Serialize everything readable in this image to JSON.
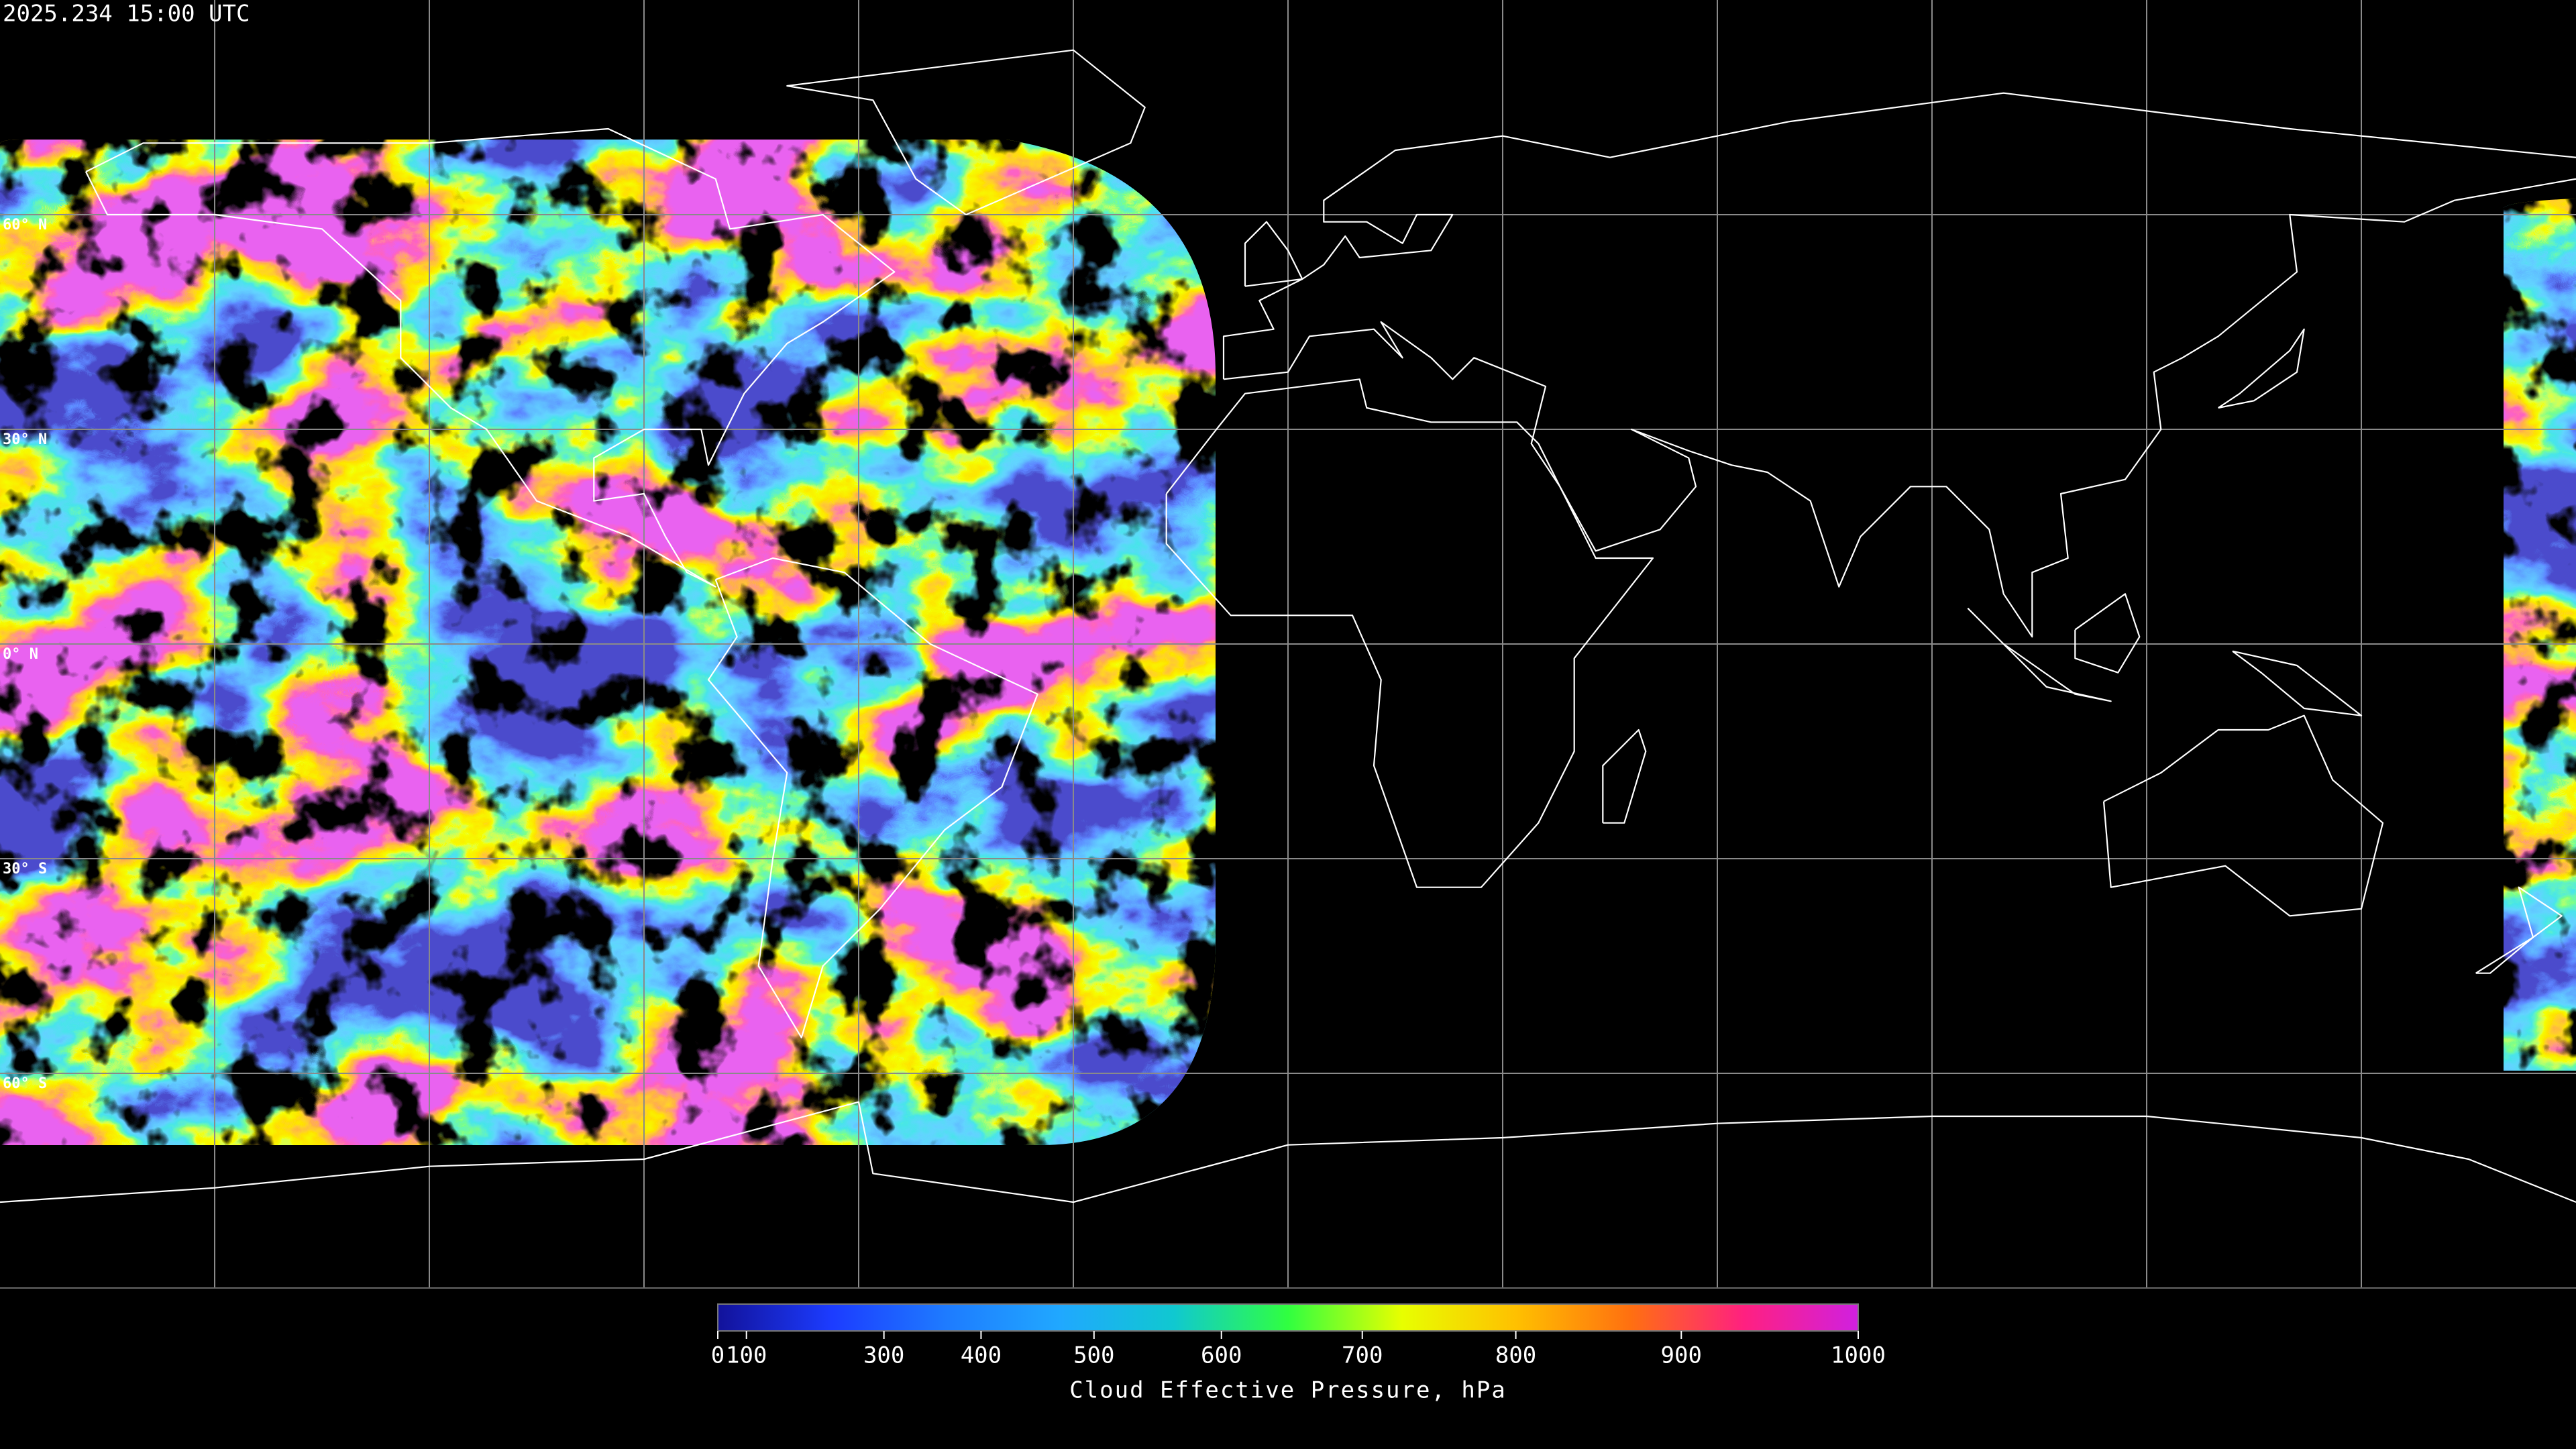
{
  "timestamp": "2025.234 15:00 UTC",
  "map": {
    "latitude_labels": [
      "60° N",
      "30° N",
      "0° N",
      "30° S",
      "60° S"
    ]
  },
  "colorbar": {
    "label": "Cloud Effective Pressure, hPa",
    "lim": [
      0,
      1000
    ],
    "ticks": [
      0,
      100,
      300,
      400,
      500,
      600,
      700,
      800,
      900,
      1000
    ],
    "colors": [
      "#12129a",
      "#1c3cff",
      "#1e7bff",
      "#20a8ff",
      "#10c8d0",
      "#30ff40",
      "#e8ff00",
      "#ffc000",
      "#ff7010",
      "#ff2080",
      "#d020e0"
    ]
  }
}
